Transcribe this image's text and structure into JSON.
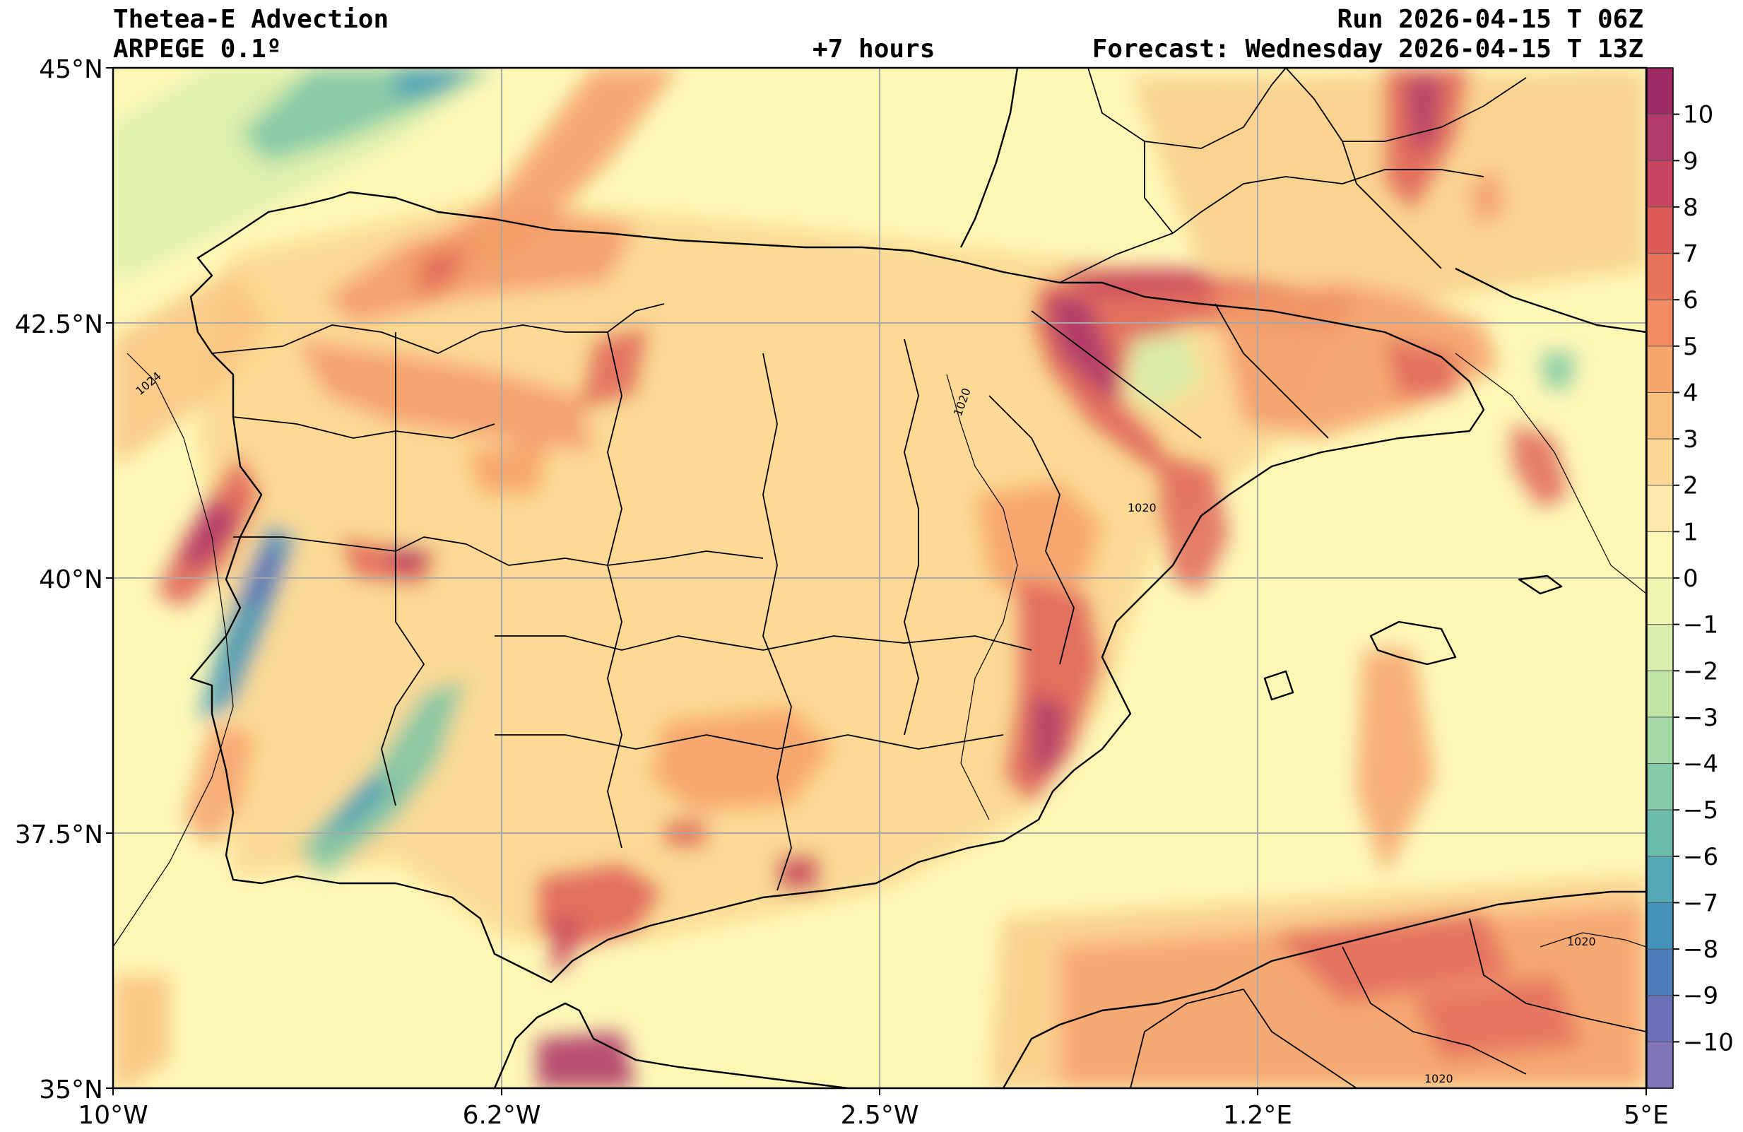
{
  "header": {
    "title": "Thetea-E Advection",
    "model": "ARPEGE 0.1º",
    "lead": "+7 hours",
    "run": "Run 2026-04-15 T 06Z",
    "forecast": "Forecast: Wednesday 2026-04-15 T 13Z"
  },
  "axes": {
    "lat_labels": [
      "45°N",
      "42.5°N",
      "40°N",
      "37.5°N",
      "35°N"
    ],
    "lon_labels": [
      "10°W",
      "6.2°W",
      "2.5°W",
      "1.2°E",
      "5°E"
    ]
  },
  "map": {
    "lon_range": [
      -10,
      5
    ],
    "lat_range": [
      35,
      45
    ],
    "isobar_labels": [
      "1024",
      "1020",
      "1020",
      "1020",
      "1020"
    ],
    "colors": {
      "ocean_base": "#fdf7b6",
      "pos_low": "#fbd08a",
      "pos_mid": "#f59b69",
      "pos_high": "#e0665a",
      "pos_max": "#b03a6a",
      "neg_low": "#d8eeaa",
      "neg_mid": "#7cc6a6",
      "neg_high": "#3f97b8",
      "neg_max": "#6a6fb8"
    }
  },
  "colorbar": {
    "ticks": [
      "10",
      "9",
      "8",
      "7",
      "6",
      "5",
      "4",
      "3",
      "2",
      "1",
      "0",
      "−1",
      "−2",
      "−3",
      "−4",
      "−5",
      "−6",
      "−7",
      "−8",
      "−9",
      "−10"
    ],
    "colors": [
      "#9e2a66",
      "#b03a6a",
      "#c9455f",
      "#dc5a58",
      "#e9735a",
      "#f28b61",
      "#f6a66d",
      "#f9c07e",
      "#fcd894",
      "#fde9a9",
      "#fdf7b6",
      "#eef5b0",
      "#d8eeaa",
      "#bfe4a6",
      "#a3d8a5",
      "#86cba7",
      "#6bbcac",
      "#54a8b4",
      "#4592bb",
      "#4b7dbb",
      "#6a6fb8",
      "#8275b8"
    ]
  }
}
